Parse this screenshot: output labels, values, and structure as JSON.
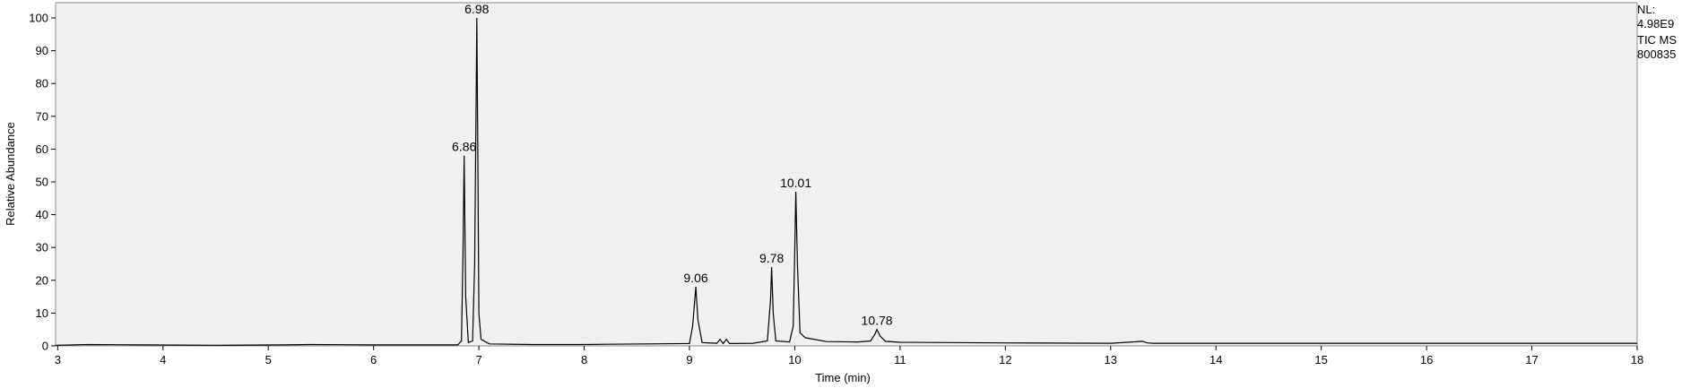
{
  "side_info": {
    "nl_label": "NL:",
    "nl_value": "4.98E9",
    "trace": "TIC  MS",
    "sample": "800835"
  },
  "chart_data": {
    "type": "line",
    "title": "",
    "xlabel": "Time (min)",
    "ylabel": "Relative Abundance",
    "xlim": [
      2.98,
      18.0
    ],
    "ylim": [
      0,
      100
    ],
    "xticks": [
      3,
      4,
      5,
      6,
      7,
      8,
      9,
      10,
      11,
      12,
      13,
      14,
      15,
      16,
      17,
      18
    ],
    "yticks": [
      0,
      10,
      20,
      30,
      40,
      50,
      60,
      70,
      80,
      90,
      100
    ],
    "grid": false,
    "colors": {
      "trace": "#000000",
      "plot_bg": "#f0f0f0",
      "frame": "#8c8c8c"
    },
    "peaks": [
      {
        "label": "6.86",
        "x": 6.86,
        "y": 58
      },
      {
        "label": "6.98",
        "x": 6.98,
        "y": 100
      },
      {
        "label": "9.06",
        "x": 9.06,
        "y": 18
      },
      {
        "label": "9.78",
        "x": 9.78,
        "y": 24
      },
      {
        "label": "10.01",
        "x": 10.01,
        "y": 47
      },
      {
        "label": "10.78",
        "x": 10.78,
        "y": 5
      }
    ],
    "series": [
      {
        "x": [
          2.98,
          3.3,
          3.8,
          4.5,
          5.15,
          5.4,
          6.0,
          6.6,
          6.8,
          6.835,
          6.85,
          6.86,
          6.875,
          6.9,
          6.94,
          6.96,
          6.975,
          6.98,
          6.99,
          7.0,
          7.02,
          7.1,
          7.5,
          8.0,
          8.2,
          8.6,
          9.0,
          9.03,
          9.06,
          9.08,
          9.12,
          9.26,
          9.29,
          9.32,
          9.35,
          9.38,
          9.42,
          9.6,
          9.74,
          9.77,
          9.78,
          9.795,
          9.82,
          9.95,
          9.985,
          10.0,
          10.01,
          10.025,
          10.05,
          10.1,
          10.3,
          10.6,
          10.72,
          10.76,
          10.78,
          10.81,
          10.86,
          11.0,
          12.0,
          13.0,
          13.3,
          13.35,
          13.4,
          14.0,
          16.0,
          18.0
        ],
        "y": [
          0.2,
          0.4,
          0.3,
          0.2,
          0.3,
          0.4,
          0.3,
          0.3,
          0.3,
          1.5,
          30,
          58,
          15,
          1.0,
          1.5,
          25,
          80,
          100,
          60,
          10,
          2.0,
          0.6,
          0.4,
          0.4,
          0.5,
          0.6,
          0.7,
          6,
          18,
          8,
          1.0,
          0.8,
          2.0,
          0.7,
          2.0,
          0.7,
          0.7,
          0.8,
          1.5,
          14,
          24,
          10,
          1.5,
          1.2,
          6,
          30,
          47,
          25,
          4,
          2.5,
          1.3,
          1.2,
          1.5,
          3.5,
          5,
          3,
          1.4,
          1.1,
          0.9,
          0.8,
          1.4,
          0.9,
          0.8,
          0.8,
          0.8,
          0.8
        ]
      }
    ]
  }
}
